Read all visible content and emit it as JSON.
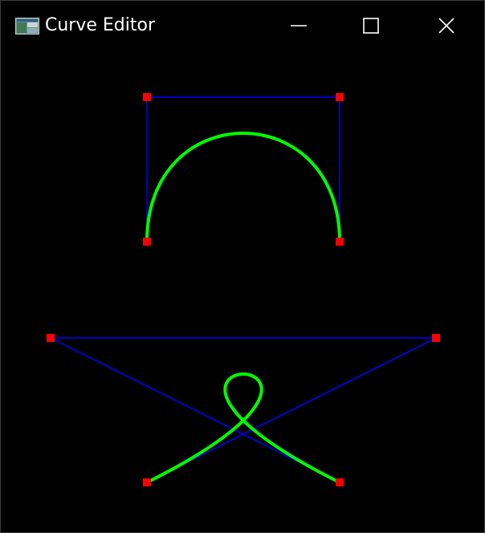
{
  "window": {
    "title": "Curve Editor",
    "icon": "app-window-icon",
    "controls": {
      "minimize_icon": "minimize-icon",
      "maximize_icon": "maximize-icon",
      "close_icon": "close-icon"
    }
  },
  "colors": {
    "background": "#000000",
    "title_text": "#ffffff",
    "control_polygon": "#0000ff",
    "curve": "#00ff00",
    "control_point": "#ff0000"
  },
  "curves": [
    {
      "type": "cubic-bezier",
      "control_points": [
        [
          182,
          300
        ],
        [
          182,
          120
        ],
        [
          422,
          120
        ],
        [
          422,
          300
        ]
      ]
    },
    {
      "type": "cubic-bezier",
      "control_points": [
        [
          182,
          600
        ],
        [
          542,
          420
        ],
        [
          62,
          420
        ],
        [
          422,
          600
        ]
      ]
    }
  ]
}
